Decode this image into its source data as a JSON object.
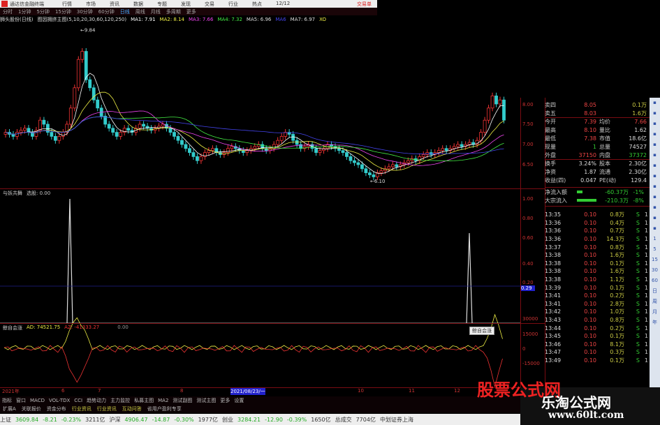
{
  "app": {
    "title": "通达信金融终端",
    "menu": [
      "行情",
      "市场",
      "资讯",
      "数据",
      "专题",
      "发现",
      "交易",
      "行业",
      "热点",
      "12/12"
    ],
    "trade": "交易单"
  },
  "period": {
    "items": [
      "分时",
      "1分钟",
      "5分钟",
      "15分钟",
      "30分钟",
      "60分钟",
      "日线",
      "周线",
      "月线",
      "多周期",
      "更多"
    ],
    "active": "日线"
  },
  "ma": {
    "stock": "狮头股份(日线)",
    "title": "图因拥挤主图(5,10,20,30,60,120,250)",
    "items": [
      {
        "t": "MA1: 7.91",
        "c": "#fff"
      },
      {
        "t": "MA2: 8.14",
        "c": "#ee4"
      },
      {
        "t": "MA3: 7.66",
        "c": "#e4e"
      },
      {
        "t": "MA4: 7.32",
        "c": "#4e4"
      },
      {
        "t": "MA5: 6.96",
        "c": "#ddd"
      },
      {
        "t": "MA6",
        "c": "#44e"
      },
      {
        "t": "MA7: 6.97",
        "c": "#ddd"
      },
      {
        "t": "XO",
        "c": "#ee4"
      }
    ]
  },
  "price_axis": [
    "8.00",
    "7.50",
    "7.00",
    "6.50"
  ],
  "main_chart": {
    "high_label": "9.84",
    "low_label": "6.10",
    "closes": [
      7.3,
      7.25,
      7.2,
      7.3,
      7.35,
      7.4,
      7.3,
      7.2,
      7.35,
      7.6,
      7.5,
      7.3,
      7.2,
      7.1,
      7.2,
      7.3,
      7.5,
      7.9,
      8.4,
      9.1,
      9.3,
      8.6,
      8.4,
      8.1,
      7.9,
      7.7,
      7.5,
      7.4,
      7.3,
      7.2,
      7.3,
      7.4,
      7.35,
      7.3,
      7.4,
      7.5,
      7.45,
      7.4,
      7.35,
      7.4,
      7.45,
      7.5,
      7.4,
      7.3,
      7.2,
      7.1,
      7.0,
      6.9,
      6.8,
      6.7,
      6.6,
      6.7,
      6.8,
      6.85,
      6.9,
      6.8,
      6.75,
      6.8,
      6.9,
      6.95,
      6.9,
      6.85,
      6.8,
      6.85,
      6.9,
      6.95,
      7.0,
      6.9,
      6.85,
      6.9,
      7.0,
      7.1,
      7.2,
      7.3,
      7.25,
      7.1,
      7.0,
      6.9,
      6.95,
      7.0,
      6.9,
      6.8,
      6.85,
      6.9,
      7.0,
      6.95,
      6.9,
      6.85,
      6.8,
      6.7,
      6.6,
      6.55,
      6.5,
      6.4,
      6.3,
      6.25,
      6.2,
      6.3,
      6.35,
      6.4,
      6.45,
      6.5,
      6.45,
      6.5,
      6.55,
      6.6,
      6.65,
      6.6,
      6.7,
      6.75,
      6.8,
      6.75,
      6.8,
      6.85,
      6.9,
      6.85,
      6.9,
      6.95,
      7.0,
      6.95,
      7.0,
      7.05,
      7.0,
      7.1,
      7.3,
      7.6,
      7.9,
      8.2,
      8.0,
      8.1,
      7.6
    ]
  },
  "ind1": {
    "title": "与妖共舞",
    "sub": "选股: 0.00",
    "axis": [
      "1.00",
      "0.80",
      "0.60",
      "0.40",
      "0.20"
    ],
    "cursor": "0.29"
  },
  "ind2": {
    "title": "鲸自会涨",
    "ad": "AD: 74521.75",
    "az": "AZ: -41333.27",
    "zero": "0.00",
    "axis": [
      "30000",
      "15000",
      "0",
      "-15000"
    ],
    "popup": "鲸自会涨"
  },
  "dates": [
    "2021年",
    "6",
    "7",
    "8",
    "2021/08/23/一",
    "10",
    "11",
    "12"
  ],
  "tabs": [
    "指标",
    "窗口",
    "MACD",
    "VOL-TDX",
    "CCI",
    "趋势动力",
    "主力监控",
    "私募主图",
    "MA2",
    "测试副图",
    "测试主图",
    "更多",
    "设置"
  ],
  "tabs2": [
    "扩展A",
    "关联报价",
    "资金分布",
    "行业资讯",
    "行业资讯",
    "互动问答",
    "省用户盈利专享"
  ],
  "quote": {
    "rows": [
      [
        "卖四",
        "8.05",
        "",
        "0.1万"
      ],
      [
        "卖五",
        "8.03",
        "",
        "1.6万"
      ],
      [
        "今开",
        "7.39",
        "均价",
        "7.66"
      ],
      [
        "最高",
        "8.10",
        "量比",
        "1.62"
      ],
      [
        "最低",
        "7.38",
        "市值",
        "18.6亿"
      ],
      [
        "现量",
        "1",
        "总量",
        "74527"
      ],
      [
        "外盘",
        "37150",
        "内盘",
        "37372"
      ],
      [
        "换手",
        "3.24%",
        "股本",
        "2.30亿"
      ],
      [
        "净资",
        "1.87",
        "流通",
        "2.30亿"
      ],
      [
        "收益(四)",
        "0.047",
        "PE(动)",
        "129.4"
      ]
    ],
    "flow": [
      [
        "净流入额",
        "-60.37万",
        "-1%"
      ],
      [
        "大宗流入",
        "-210.3万",
        "-8%"
      ]
    ]
  },
  "ticks": [
    [
      "13:35",
      "0.10",
      "0.8万",
      "S",
      "1"
    ],
    [
      "13:36",
      "0.10",
      "0.4万",
      "S",
      "1"
    ],
    [
      "13:36",
      "0.10",
      "0.7万",
      "S",
      "1"
    ],
    [
      "13:36",
      "0.10",
      "14.3万",
      "S",
      "1"
    ],
    [
      "13:37",
      "0.10",
      "0.8万",
      "S",
      "1"
    ],
    [
      "13:38",
      "0.10",
      "1.6万",
      "S",
      "1"
    ],
    [
      "13:38",
      "0.10",
      "0.1万",
      "S",
      "1"
    ],
    [
      "13:38",
      "0.10",
      "1.6万",
      "S",
      "1"
    ],
    [
      "13:38",
      "0.10",
      "1.1万",
      "S",
      "1"
    ],
    [
      "13:39",
      "0.10",
      "0.1万",
      "S",
      "1"
    ],
    [
      "13:41",
      "0.10",
      "0.2万",
      "S",
      "1"
    ],
    [
      "13:41",
      "0.10",
      "2.8万",
      "S",
      "1"
    ],
    [
      "13:42",
      "0.10",
      "1.0万",
      "S",
      "1"
    ],
    [
      "13:43",
      "0.10",
      "0.8万",
      "S",
      "1"
    ],
    [
      "13:44",
      "0.10",
      "0.2万",
      "S",
      "1"
    ],
    [
      "13:45",
      "0.10",
      "0.1万",
      "S",
      "1"
    ],
    [
      "13:46",
      "0.10",
      "8.1万",
      "S",
      "1"
    ],
    [
      "13:47",
      "0.10",
      "0.3万",
      "S",
      "1"
    ],
    [
      "13:49",
      "0.10",
      "0.1万",
      "S",
      "1"
    ]
  ],
  "tools": [
    "1",
    "5",
    "15",
    "30",
    "60",
    "日",
    "周",
    "月",
    "年"
  ],
  "status": [
    {
      "t": "上证",
      "c": "#333"
    },
    {
      "t": "3609.84",
      "c": "#2a2"
    },
    {
      "t": "-8.21",
      "c": "#2a2"
    },
    {
      "t": "-0.23%",
      "c": "#2a2"
    },
    {
      "t": "3211亿",
      "c": "#333"
    },
    {
      "t": "沪深",
      "c": "#333"
    },
    {
      "t": "4906.47",
      "c": "#2a2"
    },
    {
      "t": "-14.87",
      "c": "#2a2"
    },
    {
      "t": "-0.30%",
      "c": "#2a2"
    },
    {
      "t": "1977亿",
      "c": "#333"
    },
    {
      "t": "创业",
      "c": "#333"
    },
    {
      "t": "3284.21",
      "c": "#2a2"
    },
    {
      "t": "-12.90",
      "c": "#2a2"
    },
    {
      "t": "-0.39%",
      "c": "#2a2"
    },
    {
      "t": "1650亿",
      "c": "#333"
    },
    {
      "t": "总成交",
      "c": "#333"
    },
    {
      "t": "7704亿",
      "c": "#333"
    },
    {
      "t": "中划证券上海",
      "c": "#333"
    }
  ],
  "watermark": {
    "top": "股票公式网",
    "brand": "乐淘公式网",
    "url": "www.60lt.com"
  }
}
